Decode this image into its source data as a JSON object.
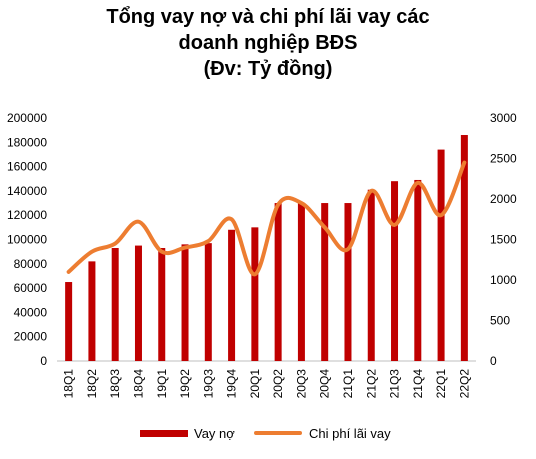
{
  "title_lines": [
    "Tổng vay nợ và chi phí lãi vay các",
    "doanh nghiệp BĐS",
    "(Đv: Tỷ đồng)"
  ],
  "chart_data": {
    "type": "bar",
    "categories": [
      "18Q1",
      "18Q2",
      "18Q3",
      "18Q4",
      "19Q1",
      "19Q2",
      "19Q3",
      "19Q4",
      "20Q1",
      "20Q2",
      "20Q3",
      "20Q4",
      "21Q1",
      "21Q2",
      "21Q3",
      "21Q4",
      "22Q1",
      "22Q2"
    ],
    "series": [
      {
        "name": "Vay nợ",
        "type": "bar",
        "axis": "left",
        "color": "#c00000",
        "values": [
          65000,
          82000,
          93000,
          95000,
          93000,
          96000,
          97000,
          108000,
          110000,
          130000,
          130000,
          130000,
          130000,
          141000,
          148000,
          149000,
          174000,
          186000
        ]
      },
      {
        "name": "Chi phí lãi vay",
        "type": "line",
        "axis": "right",
        "color": "#ed7d31",
        "values": [
          1100,
          1350,
          1450,
          1720,
          1350,
          1400,
          1480,
          1750,
          1070,
          1930,
          1950,
          1650,
          1380,
          2100,
          1680,
          2200,
          1800,
          2450
        ]
      }
    ],
    "y_left": {
      "min": 0,
      "max": 200000,
      "ticks": [
        "0",
        "20000",
        "40000",
        "60000",
        "80000",
        "100000",
        "120000",
        "140000",
        "160000",
        "180000",
        "200000"
      ]
    },
    "y_right": {
      "min": 0,
      "max": 3000,
      "ticks": [
        "0",
        "500",
        "1000",
        "1500",
        "2000",
        "2500",
        "3000"
      ]
    },
    "grid": false,
    "legend_position": "bottom"
  }
}
